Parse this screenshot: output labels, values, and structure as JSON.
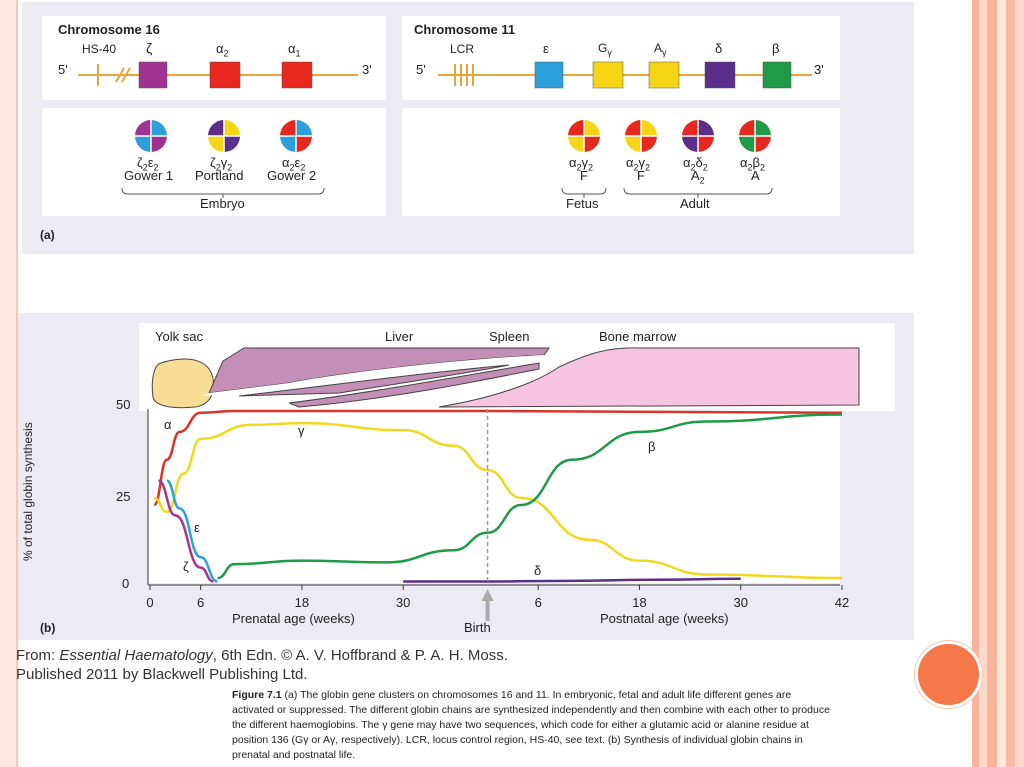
{
  "panel_a": {
    "chr16": {
      "title": "Chromosome 16",
      "five_prime": "5'",
      "three_prime": "3'",
      "genes": [
        {
          "label": "HS-40",
          "color": "#e8a33a",
          "shape": "tick"
        },
        {
          "label": "ζ",
          "color": "#a0338f",
          "shape": "box"
        },
        {
          "label": "α2",
          "color": "#e8281e",
          "shape": "box"
        },
        {
          "label": "α1",
          "color": "#e8281e",
          "shape": "box"
        }
      ],
      "hemoglobins": [
        {
          "formula": "ζ2ε2",
          "name": "Gower 1",
          "colors": [
            "#a0338f",
            "#2a9fd9",
            "#2a9fd9",
            "#a0338f"
          ]
        },
        {
          "formula": "ζ2γ2",
          "name": "Portland",
          "colors": [
            "#a0338f",
            "#f6d516",
            "#f6d516",
            "#a0338f"
          ]
        },
        {
          "formula": "α2ε2",
          "name": "Gower 2",
          "colors": [
            "#e8281e",
            "#2a9fd9",
            "#2a9fd9",
            "#e8281e"
          ]
        }
      ],
      "group_label": "Embryo"
    },
    "chr11": {
      "title": "Chromosome 11",
      "five_prime": "5'",
      "three_prime": "3'",
      "genes": [
        {
          "label": "LCR",
          "color": "#e8a33a",
          "shape": "ticks"
        },
        {
          "label": "ε",
          "color": "#2a9fd9",
          "shape": "box"
        },
        {
          "label": "Gγ",
          "color": "#f6d516",
          "shape": "box"
        },
        {
          "label": "Aγ",
          "color": "#f6d516",
          "shape": "box"
        },
        {
          "label": "δ",
          "color": "#5b2e8a",
          "shape": "box"
        },
        {
          "label": "β",
          "color": "#1f9a47",
          "shape": "box"
        }
      ],
      "hemoglobins": [
        {
          "formula": "α2γ2",
          "name": "F",
          "colors": [
            "#e8281e",
            "#f6d516",
            "#f6d516",
            "#e8281e"
          ]
        },
        {
          "formula": "α2γ2",
          "name": "F",
          "colors": [
            "#e8281e",
            "#f6d516",
            "#f6d516",
            "#e8281e"
          ]
        },
        {
          "formula": "α2δ2",
          "name": "A2",
          "colors": [
            "#e8281e",
            "#5b2e8a",
            "#5b2e8a",
            "#e8281e"
          ]
        },
        {
          "formula": "α2β2",
          "name": "A",
          "colors": [
            "#e8281e",
            "#1f9a47",
            "#1f9a47",
            "#e8281e"
          ]
        }
      ],
      "group_labels": [
        "Fetus",
        "Adult"
      ]
    },
    "panel_label": "(a)"
  },
  "panel_b": {
    "sites": [
      "Yolk sac",
      "Liver",
      "Spleen",
      "Bone marrow"
    ],
    "chart_data": {
      "type": "line",
      "ylabel": "% of total globin synthesis",
      "ylim": [
        0,
        50
      ],
      "y_ticks": [
        "0",
        "25",
        "50"
      ],
      "x_ticks": [
        "0",
        "6",
        "18",
        "30",
        "6",
        "18",
        "30",
        "42"
      ],
      "x_axis_labels": [
        "Prenatal age (weeks)",
        "Postnatal age (weeks)"
      ],
      "birth_label": "Birth",
      "series": [
        {
          "name": "α",
          "color": "#d8352a",
          "x": [
            0.5,
            2,
            3.5,
            6,
            10,
            20,
            40,
            82
          ],
          "y": [
            23,
            36,
            44,
            49.5,
            50,
            50,
            50,
            49.5
          ]
        },
        {
          "name": "γ",
          "color": "#f0d81e",
          "x": [
            0.5,
            2,
            4,
            6,
            12,
            18,
            30,
            36,
            40,
            44,
            52,
            58,
            66,
            82
          ],
          "y": [
            25,
            21,
            32,
            42,
            46,
            46.5,
            44.5,
            40,
            33,
            25,
            13,
            7,
            3,
            2
          ]
        },
        {
          "name": "ε",
          "color": "#2aa2da",
          "x": [
            2,
            3.5,
            6,
            8
          ],
          "y": [
            30,
            22,
            8,
            1
          ]
        },
        {
          "name": "ζ",
          "color": "#a8338f",
          "x": [
            1,
            3,
            6,
            7.5
          ],
          "y": [
            30,
            20,
            5,
            1
          ]
        },
        {
          "name": "β",
          "color": "#1f9a47",
          "x": [
            8,
            10,
            18,
            28,
            36,
            40,
            44,
            50,
            58,
            66,
            82
          ],
          "y": [
            2,
            6,
            7,
            6.5,
            10,
            15,
            23,
            36,
            44,
            47,
            49
          ]
        },
        {
          "name": "δ",
          "color": "#5b2e8a",
          "x": [
            30,
            40,
            50,
            60,
            70
          ],
          "y": [
            1,
            1,
            1.2,
            1.5,
            1.8
          ]
        }
      ]
    },
    "panel_label": "(b)"
  },
  "credit": {
    "line1_prefix": "From: ",
    "line1_title": "Essential Haematology",
    "line1_suffix": ", 6th Edn. © A. V. Hoffbrand & P. A. H. Moss.",
    "line2": "Published 2011 by Blackwell Publishing Ltd."
  },
  "caption": {
    "label": "Figure 7.1",
    "text": "(a) The globin gene clusters on chromosomes 16 and 11. In embryonic, fetal and adult life different genes are activated or suppressed. The different globin chains are synthesized independently and then combine with each other to produce the different haemoglobins. The γ gene may have two sequences, which code for either a glutamic acid or alanine residue at position 136 (Gγ or Aγ, respectively). LCR, locus control region, HS-40, see text. (b) Synthesis of individual globin chains in prenatal and postnatal life."
  },
  "colors": {
    "orange": "#f4784a",
    "stripe_light": "#fbd7c8",
    "stripe_dark": "#f4a485"
  }
}
